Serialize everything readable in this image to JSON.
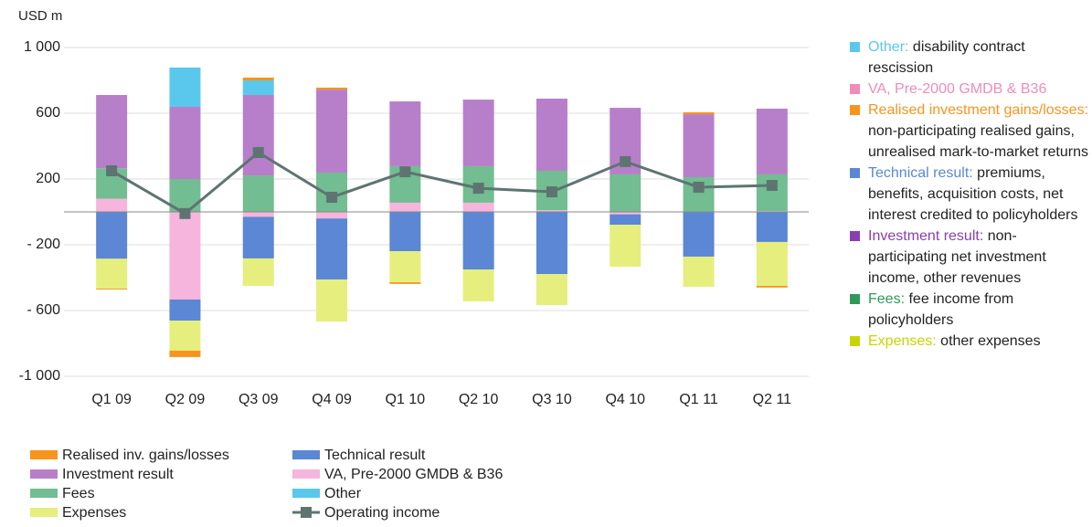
{
  "chart_data": {
    "type": "bar",
    "stacked": true,
    "y_label": "USD m",
    "categories": [
      "Q1 09",
      "Q2 09",
      "Q3 09",
      "Q4 09",
      "Q1 10",
      "Q2 10",
      "Q3 10",
      "Q4 10",
      "Q1 11",
      "Q2 11"
    ],
    "ylim": [
      -1000,
      1000
    ],
    "yticks": [
      {
        "value": 1000,
        "label": "1 000"
      },
      600,
      200,
      {
        "value": -200,
        "label": "- 200"
      },
      {
        "value": -600,
        "label": "- 600"
      },
      {
        "value": -1000,
        "label": "-1 000"
      }
    ],
    "grid": true,
    "series": [
      {
        "name": "Realised inv. gains/losses",
        "color": "#f7941d",
        "values": [
          -5,
          -39,
          17,
          12,
          -10,
          0,
          0,
          0,
          12,
          -10
        ]
      },
      {
        "name": "Investment result",
        "color": "#b77fc9",
        "values": [
          446,
          439,
          489,
          505,
          394,
          405,
          439,
          405,
          383,
          400
        ]
      },
      {
        "name": "Fees",
        "color": "#72bd91",
        "values": [
          185,
          200,
          222,
          239,
          222,
          222,
          240,
          228,
          211,
          223
        ]
      },
      {
        "name": "Expenses",
        "color": "#e6ee7e",
        "values": [
          -182,
          -183,
          -167,
          -256,
          -189,
          -194,
          -189,
          -255,
          -184,
          -267
        ]
      },
      {
        "name": "Technical result",
        "color": "#5b87d4",
        "values": [
          -285,
          -128,
          -253,
          -371,
          -239,
          -350,
          -378,
          -63,
          -272,
          -183
        ]
      },
      {
        "name": "VA, Pre-2000 GMDB & B36",
        "color": "#f6b5dc",
        "values": [
          80,
          -533,
          -30,
          -40,
          56,
          56,
          10,
          -15,
          0,
          5
        ]
      },
      {
        "name": "Other",
        "color": "#5ac8ec",
        "values": [
          0,
          239,
          89,
          0,
          0,
          0,
          0,
          0,
          0,
          0
        ]
      }
    ],
    "line_series": {
      "name": "Operating income",
      "color": "#5e7471",
      "values": [
        250,
        -10,
        361,
        89,
        244,
        144,
        122,
        306,
        150,
        161
      ]
    },
    "notes": [
      {
        "label": "Other:",
        "text": "disability contract rescission",
        "color": "#5ac8ec"
      },
      {
        "label": "VA, Pre-2000 GMDB & B36",
        "color": "#f08cb8"
      },
      {
        "label": "Realised investment gains/losses:",
        "text": "non-participating realised gains, unrealised mark-to-market returns",
        "color": "#f7941d"
      },
      {
        "label": "Technical result:",
        "text": "premiums, benefits, acquisition costs, net interest credited to policyholders",
        "color": "#5b87d4"
      },
      {
        "label": "Investment result:",
        "text": "non-participating net investment income, other revenues",
        "color": "#8a3fb0"
      },
      {
        "label": "Fees:",
        "text": "fee income from policyholders",
        "color": "#2e9a5a"
      },
      {
        "label": "Expenses:",
        "text": "other expenses",
        "color": "#c9d400"
      }
    ]
  }
}
